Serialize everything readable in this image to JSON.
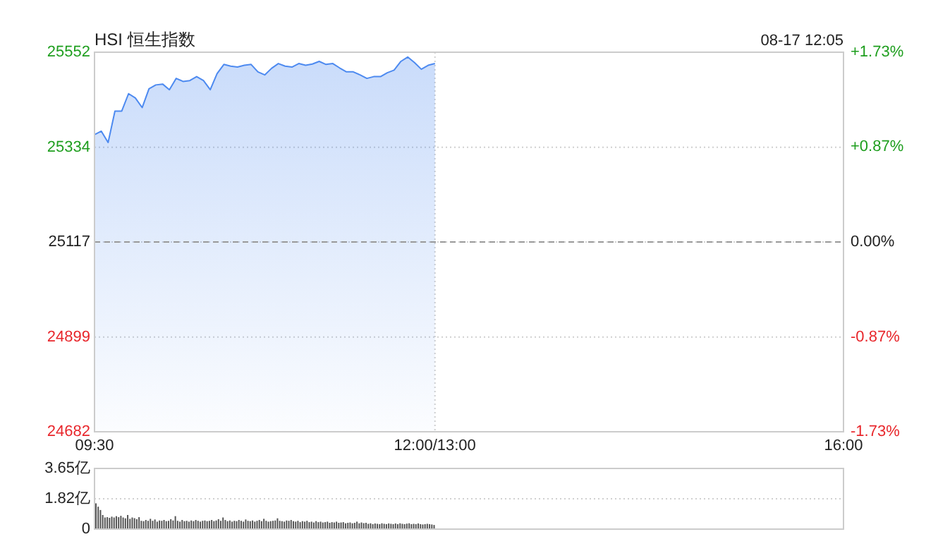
{
  "chart_data": [
    {
      "type": "area",
      "title": "HSI 恒生指数",
      "annotations": [
        "08-17 12:05"
      ],
      "categories": [
        "09:30",
        null,
        null,
        null,
        null,
        null,
        null,
        null,
        null,
        null,
        null,
        null,
        null,
        null,
        null,
        null,
        null,
        null,
        null,
        null,
        null,
        null,
        null,
        null,
        null,
        null,
        null,
        null,
        null,
        null,
        null,
        null,
        null,
        null,
        null,
        null,
        null,
        null,
        null,
        null,
        null,
        null,
        null,
        null,
        null,
        null,
        null,
        null,
        null,
        null,
        "12:00/13:00",
        null,
        null,
        null,
        null,
        null,
        null,
        null,
        null,
        null,
        null,
        null,
        null,
        null,
        null,
        null,
        null,
        null,
        null,
        null,
        null,
        null,
        null,
        null,
        null,
        null,
        null,
        null,
        null,
        null,
        null,
        null,
        null,
        null,
        null,
        null,
        null,
        null,
        null,
        null,
        null,
        null,
        null,
        null,
        null,
        null,
        null,
        null,
        null,
        null,
        null,
        null,
        null,
        null,
        null,
        null,
        null,
        null,
        null,
        null,
        "16:00"
      ],
      "series": [
        {
          "color": "#4d8af0",
          "values": [
            25363,
            25371,
            25345,
            25417,
            25417,
            25457,
            25447,
            25425,
            25468,
            25477,
            25479,
            25466,
            25492,
            25485,
            25487,
            25496,
            25487,
            25466,
            25503,
            25524,
            25520,
            25518,
            25522,
            25524,
            25507,
            25500,
            25515,
            25526,
            25520,
            25518,
            25526,
            25522,
            25525,
            25531,
            25524,
            25526,
            25516,
            25507,
            25507,
            25500,
            25492,
            25496,
            25496,
            25505,
            25511,
            25531,
            25541,
            25528,
            25513,
            25522,
            25526,
            null,
            null,
            null,
            null,
            null,
            null,
            null,
            null,
            null,
            null,
            null,
            null,
            null,
            null,
            null,
            null,
            null,
            null,
            null,
            null,
            null,
            null,
            null,
            null,
            null,
            null,
            null,
            null,
            null,
            null,
            null,
            null,
            null,
            null,
            null,
            null,
            null,
            null,
            null,
            null,
            null,
            null,
            null,
            null,
            null,
            null,
            null,
            null,
            null,
            null,
            null,
            null,
            null,
            null,
            null,
            null,
            null,
            null,
            null,
            null
          ]
        }
      ],
      "ylim": [
        24682,
        25552
      ],
      "yticks": [
        24682,
        24899,
        25117,
        25334,
        25552
      ],
      "y2lim": [
        -1.73,
        1.73
      ],
      "y2ticks": [
        {
          "value": -1.73,
          "label": "-1.73%"
        },
        {
          "value": -0.87,
          "label": "-0.87%"
        },
        {
          "value": 0,
          "label": "0.00%"
        },
        {
          "value": 0.87,
          "label": "+0.87%"
        },
        {
          "value": 1.73,
          "label": "+1.73%"
        }
      ],
      "ref_lines": [
        {
          "axis": "y",
          "value": 25117,
          "color": "#999999",
          "line_style": "dashed"
        }
      ],
      "grid": true
    },
    {
      "type": "bar",
      "categories": [
        null,
        null,
        null,
        null,
        null,
        null,
        null,
        null,
        null,
        null,
        null,
        null,
        null,
        null,
        null,
        null,
        null,
        null,
        null,
        null,
        null,
        null,
        null,
        null,
        null,
        null,
        null,
        null,
        null,
        null,
        null,
        null,
        null,
        null,
        null,
        null,
        null,
        null,
        null,
        null,
        null,
        null,
        null,
        null,
        null,
        null,
        null,
        null,
        null,
        null,
        null,
        null,
        null,
        null,
        null,
        null,
        null,
        null,
        null,
        null,
        null,
        null,
        null,
        null,
        null,
        null,
        null,
        null,
        null,
        null,
        null,
        null,
        null,
        null,
        null,
        null,
        null,
        null,
        null,
        null,
        null,
        null,
        null,
        null,
        null,
        null,
        null,
        null,
        null,
        null,
        null,
        null,
        null,
        null,
        null,
        null,
        null,
        null,
        null,
        null,
        null,
        null,
        null,
        null,
        null,
        null,
        null,
        null,
        null,
        null,
        null,
        null,
        null,
        null,
        null,
        null,
        null,
        null,
        null,
        null,
        null,
        null,
        null,
        null,
        null,
        null,
        null,
        null,
        null,
        null,
        null,
        null,
        null,
        null,
        null,
        null,
        null,
        null,
        null,
        null,
        null,
        null,
        null,
        null,
        null,
        null,
        null,
        null,
        null,
        null,
        null,
        null,
        null,
        null,
        null,
        null,
        null,
        null,
        null,
        null,
        null,
        null,
        null,
        null,
        null,
        null,
        null,
        null,
        null,
        null,
        null,
        null,
        null,
        null,
        null,
        null,
        null,
        null,
        null,
        null,
        null,
        null,
        null,
        null,
        null,
        null,
        null,
        null,
        null,
        null,
        null,
        null,
        null,
        null,
        null,
        null,
        null,
        null,
        null,
        null,
        null,
        null,
        null,
        null,
        null,
        null,
        null,
        null,
        null,
        null,
        null,
        null,
        null,
        null,
        null,
        null,
        null,
        null,
        null,
        null,
        null,
        null,
        null,
        null,
        null,
        null,
        null,
        null,
        null,
        null,
        null,
        null,
        null,
        null,
        null,
        null,
        null,
        null,
        null,
        null,
        null,
        null,
        null,
        null,
        null,
        null,
        null,
        null,
        null,
        null,
        null,
        null,
        null,
        null,
        null,
        null,
        null,
        null,
        null,
        null,
        null,
        null,
        null,
        null,
        null,
        null,
        null,
        null,
        null,
        null,
        null,
        null,
        null,
        null,
        null,
        null,
        null,
        null,
        null,
        null,
        null,
        null,
        null,
        null,
        null,
        null,
        null,
        null,
        null,
        null,
        null,
        null,
        null,
        null,
        null,
        null,
        null,
        null,
        null,
        null,
        null,
        null,
        null,
        null,
        null,
        null,
        null,
        null,
        null,
        null,
        null,
        null,
        null,
        null,
        null,
        null,
        null,
        null,
        null,
        null,
        null,
        null,
        null,
        null,
        null,
        null,
        null,
        null,
        null,
        null,
        null
      ],
      "series": [
        {
          "color": "#555555",
          "values": [
            1.55,
            1.35,
            1.15,
            0.85,
            0.7,
            0.72,
            0.68,
            0.75,
            0.7,
            0.78,
            0.72,
            0.8,
            0.7,
            0.65,
            0.85,
            0.62,
            0.7,
            0.66,
            0.6,
            0.72,
            0.5,
            0.48,
            0.55,
            0.5,
            0.62,
            0.5,
            0.58,
            0.45,
            0.52,
            0.5,
            0.55,
            0.48,
            0.5,
            0.6,
            0.52,
            0.78,
            0.5,
            0.45,
            0.55,
            0.48,
            0.5,
            0.45,
            0.52,
            0.48,
            0.55,
            0.5,
            0.45,
            0.5,
            0.52,
            0.48,
            0.5,
            0.55,
            0.48,
            0.52,
            0.6,
            0.5,
            0.7,
            0.55,
            0.48,
            0.52,
            0.45,
            0.5,
            0.48,
            0.55,
            0.5,
            0.45,
            0.58,
            0.5,
            0.48,
            0.52,
            0.45,
            0.5,
            0.55,
            0.48,
            0.62,
            0.5,
            0.45,
            0.48,
            0.5,
            0.52,
            0.65,
            0.5,
            0.48,
            0.45,
            0.52,
            0.5,
            0.55,
            0.48,
            0.45,
            0.5,
            0.42,
            0.48,
            0.45,
            0.5,
            0.42,
            0.45,
            0.4,
            0.48,
            0.42,
            0.45,
            0.4,
            0.42,
            0.45,
            0.38,
            0.42,
            0.4,
            0.45,
            0.38,
            0.4,
            0.42,
            0.35,
            0.38,
            0.4,
            0.35,
            0.38,
            0.45,
            0.35,
            0.4,
            0.36,
            0.38,
            0.32,
            0.35,
            0.3,
            0.34,
            0.32,
            0.3,
            0.35,
            0.32,
            0.3,
            0.34,
            0.32,
            0.3,
            0.34,
            0.3,
            0.35,
            0.32,
            0.3,
            0.33,
            0.35,
            0.3,
            0.32,
            0.3,
            0.34,
            0.3,
            0.28,
            0.3,
            0.32,
            0.3,
            0.28,
            0.25,
            null,
            null,
            null,
            null,
            null,
            null,
            null,
            null,
            null,
            null,
            null,
            null,
            null,
            null,
            null,
            null,
            null,
            null,
            null,
            null,
            null,
            null,
            null,
            null,
            null,
            null,
            null,
            null,
            null,
            null,
            null,
            null,
            null,
            null,
            null,
            null,
            null,
            null,
            null,
            null,
            null,
            null,
            null,
            null,
            null,
            null,
            null,
            null,
            null,
            null,
            null,
            null,
            null,
            null,
            null,
            null,
            null,
            null,
            null,
            null,
            null,
            null,
            null,
            null,
            null,
            null,
            null,
            null,
            null,
            null,
            null,
            null,
            null,
            null,
            null,
            null,
            null,
            null,
            null,
            null,
            null,
            null,
            null,
            null,
            null,
            null,
            null,
            null,
            null,
            null,
            null,
            null,
            null,
            null,
            null,
            null,
            null,
            null,
            null,
            null,
            null,
            null,
            null,
            null,
            null,
            null,
            null,
            null,
            null,
            null,
            null,
            null,
            null,
            null,
            null,
            null,
            null,
            null,
            null,
            null,
            null,
            null,
            null,
            null,
            null,
            null,
            null,
            null,
            null,
            null,
            null,
            null,
            null,
            null,
            null,
            null,
            null,
            null,
            null,
            null,
            null,
            null,
            null,
            null,
            null,
            null,
            null,
            null,
            null,
            null,
            null,
            null,
            null,
            null,
            null,
            null,
            null,
            null,
            null,
            null,
            null,
            null,
            null,
            null,
            null,
            null,
            null,
            null,
            null,
            null,
            null,
            null,
            null,
            null,
            null,
            null,
            null,
            null,
            null,
            null,
            null
          ]
        }
      ],
      "ylim": [
        0,
        3.65
      ],
      "yticks": [
        0,
        {
          "value": 1.82,
          "label": "1.82亿"
        },
        {
          "value": 3.65,
          "label": "3.65亿"
        }
      ],
      "grid": "y",
      "tick_labels": "y"
    }
  ]
}
